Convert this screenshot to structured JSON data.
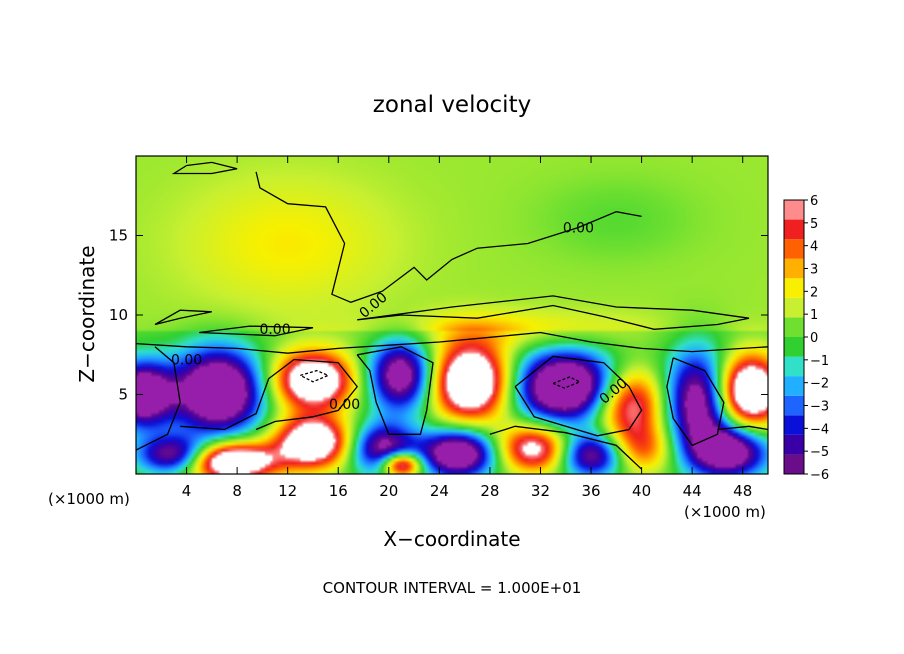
{
  "chart_data": {
    "type": "heatmap",
    "title": "zonal velocity",
    "xlabel": "X−coordinate",
    "ylabel": "Z−coordinate",
    "x_unit_label_left": "(×1000 m)",
    "x_unit_label_right": "(×1000 m)",
    "xlim": [
      0,
      50
    ],
    "ylim": [
      0,
      20
    ],
    "x_ticks": [
      4,
      8,
      12,
      16,
      20,
      24,
      28,
      32,
      36,
      40,
      44,
      48
    ],
    "y_ticks": [
      5,
      10,
      15
    ],
    "colorbar": {
      "ticks": [
        6,
        5,
        4,
        3,
        2,
        1,
        0,
        -1,
        -2,
        -3,
        -4,
        -5,
        -6
      ],
      "range": [
        -6,
        6
      ],
      "colors": [
        "#6a0d8a",
        "#3a00a8",
        "#0a10d8",
        "#1e64ff",
        "#20b0ff",
        "#30e0c8",
        "#30d030",
        "#70e030",
        "#c8f030",
        "#f8f000",
        "#ffb000",
        "#ff6000",
        "#f02020",
        "#ff8c8c"
      ]
    },
    "contour_labels": [
      {
        "text": "0.00",
        "x": 19,
        "y": 10.4,
        "rotate": -40
      },
      {
        "text": "0.00",
        "x": 35,
        "y": 15.2,
        "rotate": 0
      },
      {
        "text": "0.00",
        "x": 11,
        "y": 8.8,
        "rotate": 0
      },
      {
        "text": "0.00",
        "x": 4,
        "y": 6.9,
        "rotate": 0
      },
      {
        "text": "0.00",
        "x": 16.5,
        "y": 4.1,
        "rotate": 0
      },
      {
        "text": "0.00",
        "x": 38,
        "y": 5.0,
        "rotate": -40
      }
    ],
    "footnote": "CONTOUR INTERVAL = 1.000E+01",
    "features": [
      {
        "x": 0.5,
        "y": 5.0,
        "v": -9,
        "rx": 2.4,
        "ry": 2.0
      },
      {
        "x": 6.5,
        "y": 5.2,
        "v": -10,
        "rx": 3.5,
        "ry": 2.6
      },
      {
        "x": 14.0,
        "y": 5.9,
        "v": 9,
        "rx": 3.2,
        "ry": 1.8
      },
      {
        "x": 21.0,
        "y": 6.2,
        "v": -8,
        "rx": 2.6,
        "ry": 2.2
      },
      {
        "x": 26.5,
        "y": 5.8,
        "v": 10,
        "rx": 3.2,
        "ry": 2.4
      },
      {
        "x": 34.0,
        "y": 5.5,
        "v": -10,
        "rx": 4.2,
        "ry": 2.2
      },
      {
        "x": 39.0,
        "y": 4.5,
        "v": 7,
        "rx": 2.8,
        "ry": 2.2
      },
      {
        "x": 44.5,
        "y": 4.5,
        "v": -8,
        "rx": 2.6,
        "ry": 3.2
      },
      {
        "x": 48.5,
        "y": 5.2,
        "v": 10,
        "rx": 2.6,
        "ry": 2.2
      },
      {
        "x": 3.0,
        "y": 1.2,
        "v": -7,
        "rx": 2.8,
        "ry": 1.2
      },
      {
        "x": 7.5,
        "y": 0.8,
        "v": 10,
        "rx": 3.5,
        "ry": 1.2
      },
      {
        "x": 14.0,
        "y": 2.0,
        "v": 9,
        "rx": 3.0,
        "ry": 1.6
      },
      {
        "x": 19.5,
        "y": 1.6,
        "v": -7,
        "rx": 2.6,
        "ry": 1.6
      },
      {
        "x": 21.0,
        "y": 0.6,
        "v": 9,
        "rx": 1.6,
        "ry": 0.8
      },
      {
        "x": 25.5,
        "y": 1.3,
        "v": -9,
        "rx": 3.0,
        "ry": 1.5
      },
      {
        "x": 31.5,
        "y": 1.6,
        "v": 7,
        "rx": 3.0,
        "ry": 1.5
      },
      {
        "x": 36.0,
        "y": 1.2,
        "v": -7,
        "rx": 2.6,
        "ry": 1.4
      },
      {
        "x": 40.0,
        "y": 1.6,
        "v": 4,
        "rx": 2.6,
        "ry": 1.6
      },
      {
        "x": 47.0,
        "y": 1.4,
        "v": -8,
        "rx": 3.0,
        "ry": 1.6
      },
      {
        "x": 12.0,
        "y": 14.5,
        "v": 1.5,
        "rx": 8.0,
        "ry": 4.0
      },
      {
        "x": 30.0,
        "y": 9.0,
        "v": 1.8,
        "rx": 10.0,
        "ry": 1.2
      },
      {
        "x": 38.0,
        "y": 16.0,
        "v": -0.8,
        "rx": 6.0,
        "ry": 2.5
      }
    ],
    "contours": [
      "0,8.2 4,8.0 8,7.9 12,7.6 16,7.9 20,8.1 24,8.3 28,8.6 32,8.9 36,8.3 40,7.9 44,7.7 48,7.9 50,8.0",
      "9.5,19.0 9.8,18.0 12.0,17.0 15.0,16.8 16.5,14.5 15.5,11.3 17.0,10.8 19.5,11.5 22.0,13.0 23.0,12.2 25.0,13.5 27.0,14.2 31.0,14.5 33.0,15.0 35.0,15.5 38.0,16.5 40.0,16.2",
      "4.0,19.4 6.0,19.6 8.0,19.2 6.0,18.9 3.0,18.9 4.0,19.4",
      "1.5,9.4 3.5,9.8 6.0,10.2 3.5,10.3 1.5,9.4",
      "5.0,8.9 9.0,9.3 14.0,9.2 11.0,8.7 5.0,8.9",
      "17.5,9.7 21.0,10.0 27.0,9.8 33.0,10.6 37.0,9.9 41.0,9.1 46.0,9.4 48.5,9.8 44.0,10.3 38.0,10.5 33.0,11.2 25.0,10.5 17.5,9.7",
      "0,1.5 2.5,2.5 3.5,4.5 3.0,7.0 1.5,8.0",
      "3.5,3.0 7.0,2.8 9.5,3.8 10.5,6.0 11.5,6.6 12.5,7.2 16.0,7.0 17.5,5.5 16.0,4.0 14.0,3.6 11.0,3.3 9.5,2.8",
      "17.5,7.5 21.0,8.0 23.5,7.0 23.0,4.0 22.5,2.5 20.0,2.5 19.0,4.5 18.5,6.5 17.5,7.5",
      "30.0,5.5 33.0,7.4 37.0,7.0 39.0,5.5 40.0,4.0 39.0,2.8 36.5,2.4 34.0,3.0 31.5,3.6 30.0,5.5",
      "28.0,2.5 30.0,3.0 34.0,2.6 38.0,1.8 40.0,0.3",
      "42.5,7.3 45.0,6.5 46.5,4.5 46.0,2.5 44.0,1.8 42.5,3.5 42.0,5.5 42.5,7.3",
      "46.0,2.8 48.5,3.0 50.0,2.8",
      "13.0,6.2 14.3,6.5 15.2,6.2 14.0,5.8 13.0,6.2",
      "33.0,5.7 34.3,6.1 35.1,5.8 33.9,5.4 33.0,5.7"
    ]
  }
}
